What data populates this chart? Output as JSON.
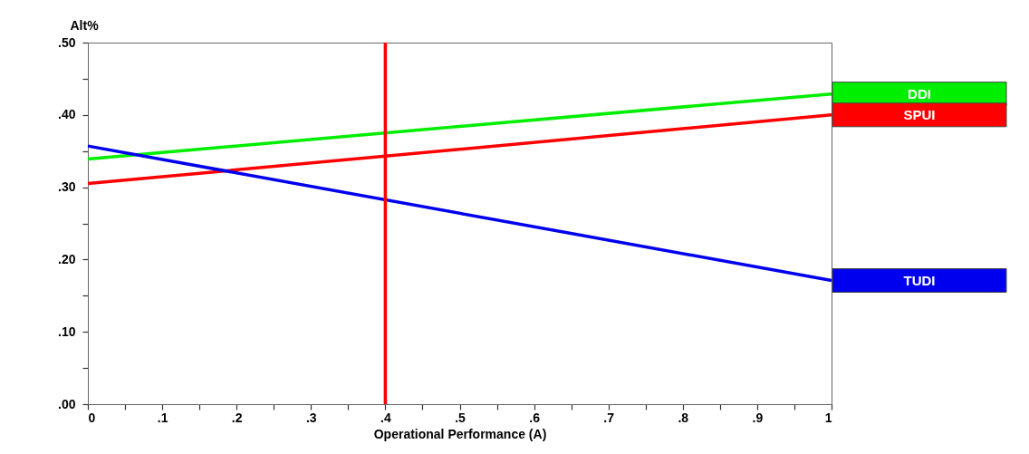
{
  "chart_data": {
    "type": "line",
    "xlabel": "Operational Performance (A)",
    "ylabel": "Alt%",
    "x": [
      0,
      1
    ],
    "series": [
      {
        "name": "DDI",
        "color": "#00ee00",
        "values": [
          0.339,
          0.429
        ]
      },
      {
        "name": "SPUI",
        "color": "#ff0000",
        "values": [
          0.305,
          0.4
        ]
      },
      {
        "name": "TUDI",
        "color": "#0000ee",
        "values": [
          0.357,
          0.171
        ]
      }
    ],
    "xlim": [
      0,
      1
    ],
    "ylim": [
      0,
      0.5
    ],
    "xticks": [
      0,
      {
        "value": 0.05,
        "label": null
      },
      {
        "value": 0.1,
        "label": ".1"
      },
      {
        "value": 0.15,
        "label": null
      },
      {
        "value": 0.2,
        "label": ".2"
      },
      {
        "value": 0.25,
        "label": null
      },
      {
        "value": 0.3,
        "label": ".3"
      },
      {
        "value": 0.35,
        "label": null
      },
      {
        "value": 0.4,
        "label": ".4"
      },
      {
        "value": 0.45,
        "label": null
      },
      {
        "value": 0.5,
        "label": ".5"
      },
      {
        "value": 0.55,
        "label": null
      },
      {
        "value": 0.6,
        "label": ".6"
      },
      {
        "value": 0.65,
        "label": null
      },
      {
        "value": 0.7,
        "label": ".7"
      },
      {
        "value": 0.75,
        "label": null
      },
      {
        "value": 0.8,
        "label": ".8"
      },
      {
        "value": 0.85,
        "label": null
      },
      {
        "value": 0.9,
        "label": ".9"
      },
      {
        "value": 0.95,
        "label": null
      },
      1
    ],
    "yticks": [
      {
        "value": 0,
        "label": ".00"
      },
      {
        "value": 0.05,
        "label": null
      },
      {
        "value": 0.1,
        "label": ".10"
      },
      {
        "value": 0.15,
        "label": null
      },
      {
        "value": 0.2,
        "label": ".20"
      },
      {
        "value": 0.25,
        "label": null
      },
      {
        "value": 0.3,
        "label": ".30"
      },
      {
        "value": 0.35,
        "label": null
      },
      {
        "value": 0.4,
        "label": ".40"
      },
      {
        "value": 0.45,
        "label": null
      },
      {
        "value": 0.5,
        "label": ".50"
      }
    ],
    "ref_lines": [
      {
        "axis": "x",
        "value": 0.4,
        "color": "#ff0000"
      }
    ],
    "legend": "right",
    "grid": false,
    "marker": "none",
    "line_style": "solid"
  }
}
